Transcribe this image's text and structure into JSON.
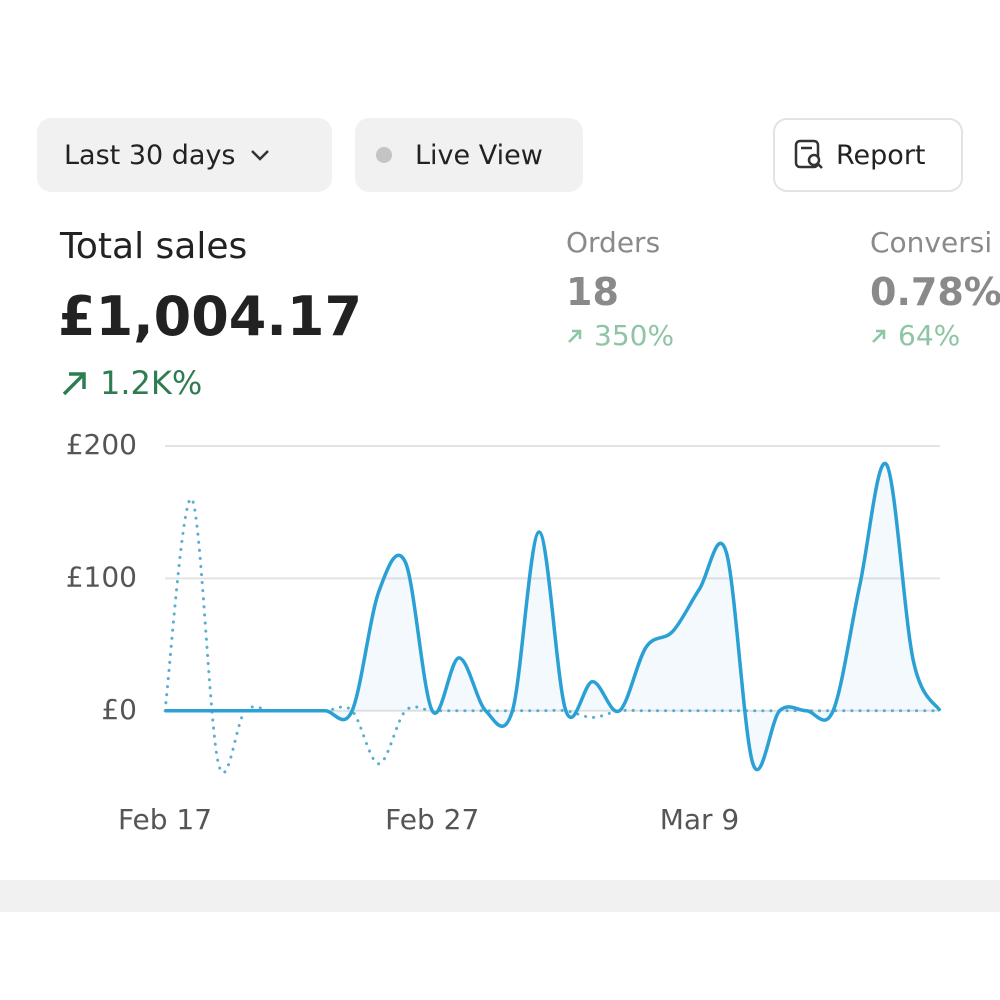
{
  "toolbar": {
    "range": "Last 30 days",
    "live": "Live View",
    "report": "Report"
  },
  "metrics": [
    {
      "label": "Total sales",
      "value": "£1,004.17",
      "change": "1.2K%"
    },
    {
      "label": "Orders",
      "value": "18",
      "change": "350%"
    },
    {
      "label": "Conversi",
      "value": "0.78%",
      "change": "64%"
    }
  ],
  "chart_data": {
    "type": "line",
    "categories": [
      "Feb 17",
      null,
      null,
      null,
      null,
      null,
      null,
      null,
      null,
      null,
      "Feb 27",
      null,
      null,
      null,
      null,
      null,
      null,
      null,
      null,
      null,
      "Mar 9",
      null,
      null,
      null,
      null,
      null,
      null,
      null,
      null,
      null
    ],
    "series": [
      {
        "color": "#2ba0d4",
        "style": "solid",
        "values": [
          0,
          0,
          0,
          0,
          0,
          0,
          0,
          0,
          90,
          112,
          0,
          40,
          0,
          0,
          135,
          0,
          22,
          0,
          48,
          60,
          92,
          120,
          -40,
          0,
          0,
          0,
          95,
          186,
          38,
          0
        ]
      },
      {
        "color": "#5aaed0",
        "style": "dotted",
        "values": [
          0,
          160,
          -40,
          0,
          0,
          0,
          0,
          0,
          -40,
          0,
          0,
          0,
          0,
          0,
          0,
          0,
          -5,
          0,
          0,
          0,
          0,
          0,
          0,
          0,
          0,
          0,
          0,
          0,
          0,
          0
        ]
      }
    ],
    "ylim": [
      -50,
      200
    ],
    "yticks": [
      {
        "value": 0,
        "label": "£0"
      },
      {
        "value": 100,
        "label": "£100"
      },
      {
        "value": 200,
        "label": "£200"
      }
    ],
    "grid": true
  }
}
